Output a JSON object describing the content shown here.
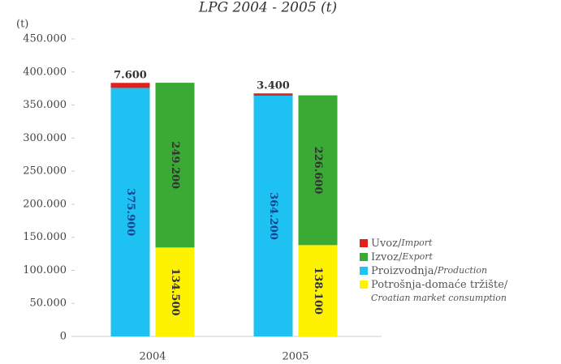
{
  "chart_data": {
    "type": "stacked-bar",
    "title": "LPG 2004 - 2005 (t)",
    "y_label": "(t)",
    "categories": [
      "2004",
      "2005"
    ],
    "series": [
      {
        "name": "Potrošnja-domaće tržište/Croatian market consumption",
        "color": "#fff200",
        "stack": 1,
        "values": [
          134500,
          138100
        ],
        "value_labels": [
          "134.500",
          "138.100"
        ]
      },
      {
        "name": "Proizvodnja/Production",
        "color": "#1ec2f2",
        "stack": 0,
        "values": [
          375900,
          364200
        ],
        "value_labels": [
          "375.900",
          "364.200"
        ]
      },
      {
        "name": "Izvoz/Export",
        "color": "#3aaa35",
        "stack": 1,
        "values": [
          249200,
          226600
        ],
        "value_labels": [
          "249.200",
          "226.600"
        ]
      },
      {
        "name": "Uvoz/Import",
        "color": "#e3211c",
        "stack": 0,
        "values": [
          7600,
          3400
        ],
        "value_labels": [
          "7.600",
          "3.400"
        ]
      }
    ],
    "ylim": [
      0,
      450000
    ],
    "yticks": [
      0,
      {
        "value": 50000,
        "label": "50.000"
      },
      {
        "value": 100000,
        "label": "100.000"
      },
      {
        "value": 150000,
        "label": "150.000"
      },
      {
        "value": 200000,
        "label": "200.000"
      },
      {
        "value": 250000,
        "label": "250.000"
      },
      {
        "value": 300000,
        "label": "300.000"
      },
      {
        "value": 350000,
        "label": "350.000"
      },
      {
        "value": 400000,
        "label": "400.000"
      },
      {
        "value": 450000,
        "label": "450.000"
      }
    ],
    "grid": false,
    "legend": "right"
  }
}
